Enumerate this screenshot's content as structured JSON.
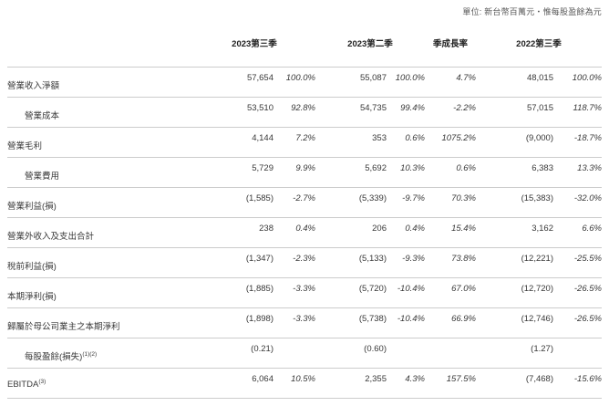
{
  "unit_note": "單位: 新台幣百萬元‧惟每股盈餘為元",
  "table": {
    "column_headers": [
      "2023第三季",
      "2023第二季",
      "季成長率",
      "2022第三季"
    ],
    "rows": [
      {
        "label": "營業收入淨額",
        "sup": "",
        "indent": false,
        "v1": "57,654",
        "p1": "100.0%",
        "v2": "55,087",
        "p2": "100.0%",
        "growth": "4.7%",
        "v3": "48,015",
        "p3": "100.0%"
      },
      {
        "label": "營業成本",
        "sup": "",
        "indent": true,
        "v1": "53,510",
        "p1": "92.8%",
        "v2": "54,735",
        "p2": "99.4%",
        "growth": "-2.2%",
        "v3": "57,015",
        "p3": "118.7%"
      },
      {
        "label": "營業毛利",
        "sup": "",
        "indent": false,
        "v1": "4,144",
        "p1": "7.2%",
        "v2": "353",
        "p2": "0.6%",
        "growth": "1075.2%",
        "v3": "(9,000)",
        "p3": "-18.7%"
      },
      {
        "label": "營業費用",
        "sup": "",
        "indent": true,
        "v1": "5,729",
        "p1": "9.9%",
        "v2": "5,692",
        "p2": "10.3%",
        "growth": "0.6%",
        "v3": "6,383",
        "p3": "13.3%"
      },
      {
        "label": "營業利益(損)",
        "sup": "",
        "indent": false,
        "v1": "(1,585)",
        "p1": "-2.7%",
        "v2": "(5,339)",
        "p2": "-9.7%",
        "growth": "70.3%",
        "v3": "(15,383)",
        "p3": "-32.0%"
      },
      {
        "label": "營業外收入及支出合計",
        "sup": "",
        "indent": false,
        "v1": "238",
        "p1": "0.4%",
        "v2": "206",
        "p2": "0.4%",
        "growth": "15.4%",
        "v3": "3,162",
        "p3": "6.6%"
      },
      {
        "label": "稅前利益(損)",
        "sup": "",
        "indent": false,
        "v1": "(1,347)",
        "p1": "-2.3%",
        "v2": "(5,133)",
        "p2": "-9.3%",
        "growth": "73.8%",
        "v3": "(12,221)",
        "p3": "-25.5%"
      },
      {
        "label": "本期淨利(損)",
        "sup": "",
        "indent": false,
        "v1": "(1,885)",
        "p1": "-3.3%",
        "v2": "(5,720)",
        "p2": "-10.4%",
        "growth": "67.0%",
        "v3": "(12,720)",
        "p3": "-26.5%"
      },
      {
        "label": "歸屬於母公司業主之本期淨利",
        "sup": "",
        "indent": false,
        "v1": "(1,898)",
        "p1": "-3.3%",
        "v2": "(5,738)",
        "p2": "-10.4%",
        "growth": "66.9%",
        "v3": "(12,746)",
        "p3": "-26.5%"
      },
      {
        "label": "每股盈餘(損失)",
        "sup": "(1)(2)",
        "indent": true,
        "v1": "(0.21)",
        "p1": "",
        "v2": "(0.60)",
        "p2": "",
        "growth": "",
        "v3": "(1.27)",
        "p3": ""
      },
      {
        "label": "EBITDA",
        "sup": "(3)",
        "indent": false,
        "v1": "6,064",
        "p1": "10.5%",
        "v2": "2,355",
        "p2": "4.3%",
        "growth": "157.5%",
        "v3": "(7,468)",
        "p3": "-15.6%"
      }
    ]
  }
}
